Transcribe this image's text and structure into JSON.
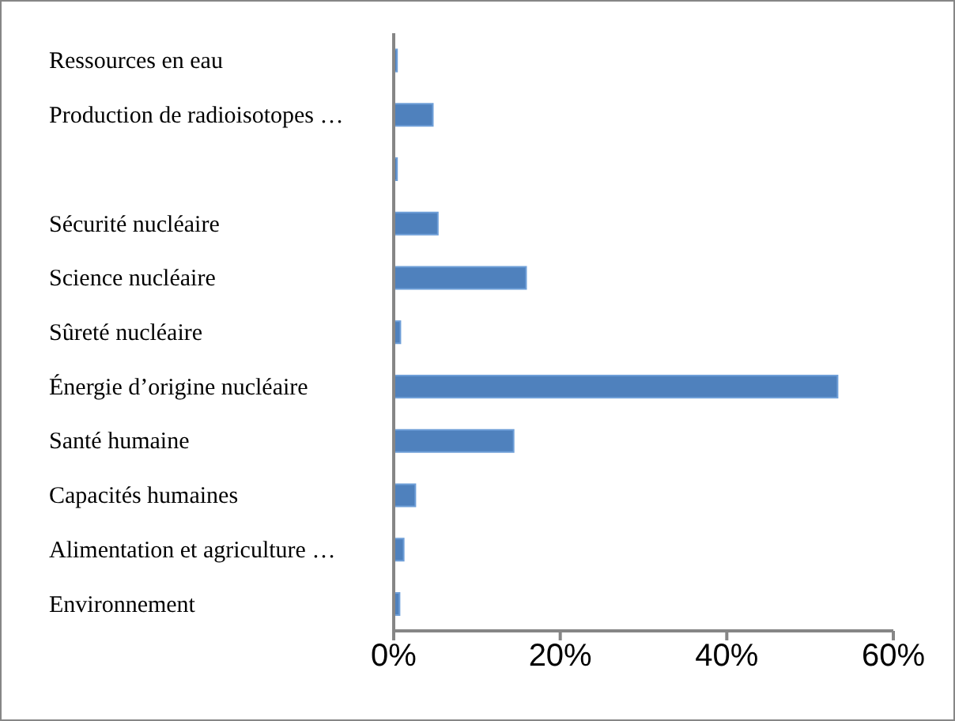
{
  "chart_data": {
    "type": "bar",
    "orientation": "horizontal",
    "categories": [
      "Ressources en eau",
      "Production de radioisotopes …",
      null,
      "Sécurité nucléaire",
      "Science nucléaire",
      "Sûreté nucléaire",
      "Énergie d’origine nucléaire",
      "Santé humaine",
      "Capacités humaines",
      "Alimentation et agriculture …",
      "Environnement"
    ],
    "values": [
      0.4,
      4.7,
      0.4,
      5.3,
      15.9,
      0.8,
      53.3,
      14.4,
      2.6,
      1.2,
      0.7
    ],
    "color": "#4f81bd",
    "xlim": [
      0,
      60
    ],
    "xticks": [
      {
        "value": 0,
        "label": "0%"
      },
      {
        "value": 20,
        "label": "20%"
      },
      {
        "value": 40,
        "label": "40%"
      },
      {
        "value": 60,
        "label": "60%"
      }
    ],
    "grid": false,
    "legend": false
  }
}
